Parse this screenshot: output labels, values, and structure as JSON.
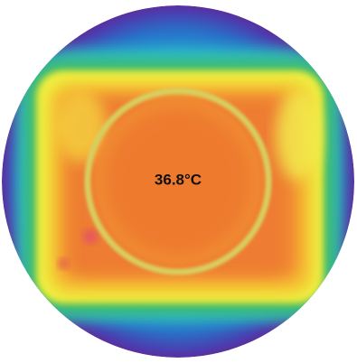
{
  "image": {
    "label": "36.8°C"
  }
}
